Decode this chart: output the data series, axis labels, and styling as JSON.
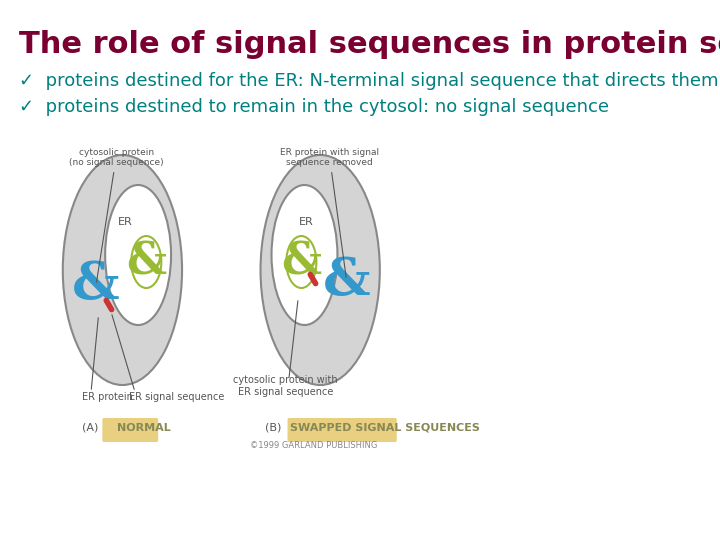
{
  "title": "The role of signal sequences in protein sorting",
  "title_color": "#7B0032",
  "title_fontsize": 22,
  "bullet1": "✓  proteins destined for the ER: N-terminal signal sequence that directs them",
  "bullet2": "✓  proteins destined to remain in the cytosol: no signal sequence",
  "bullet_color": "#008080",
  "bullet_fontsize": 13,
  "background_color": "#ffffff",
  "image_placeholder": true,
  "diagram_label_a": "(A)  NORMAL",
  "diagram_label_b": "(B)  SWAPPED SIGNAL SEQUENCES",
  "diagram_label_color": "#c8a84b",
  "copyright": "©1999 GARLAND PUBLISHING"
}
